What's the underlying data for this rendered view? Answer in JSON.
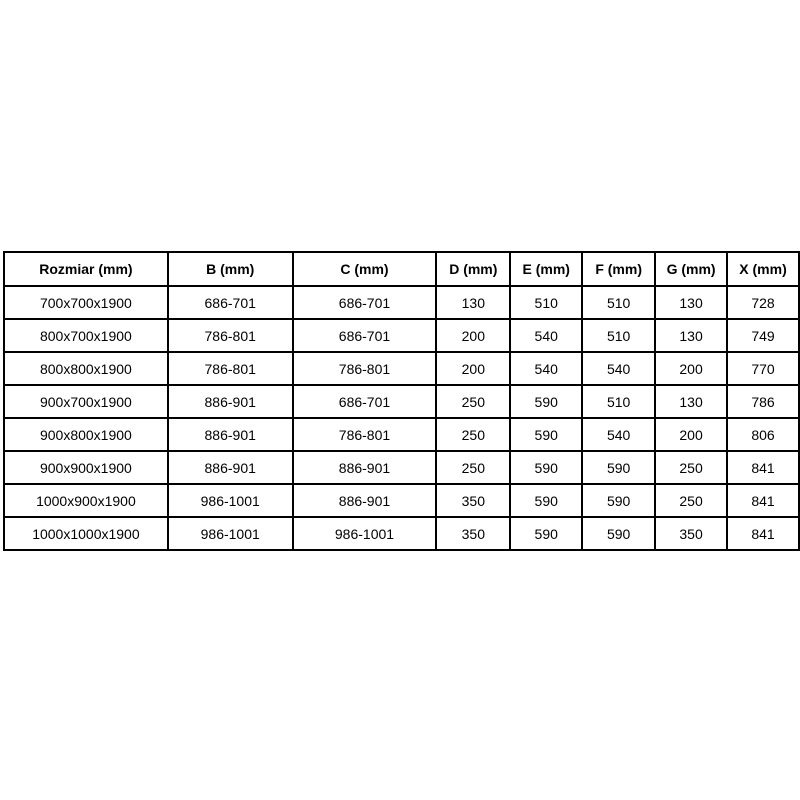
{
  "table": {
    "columns": [
      "Rozmiar (mm)",
      "B (mm)",
      "C (mm)",
      "D (mm)",
      "E (mm)",
      "F (mm)",
      "G (mm)",
      "X (mm)"
    ],
    "rows": [
      [
        "700x700x1900",
        "686-701",
        "686-701",
        "130",
        "510",
        "510",
        "130",
        "728"
      ],
      [
        "800x700x1900",
        "786-801",
        "686-701",
        "200",
        "540",
        "510",
        "130",
        "749"
      ],
      [
        "800x800x1900",
        "786-801",
        "786-801",
        "200",
        "540",
        "540",
        "200",
        "770"
      ],
      [
        "900x700x1900",
        "886-901",
        "686-701",
        "250",
        "590",
        "510",
        "130",
        "786"
      ],
      [
        "900x800x1900",
        "886-901",
        "786-801",
        "250",
        "590",
        "540",
        "200",
        "806"
      ],
      [
        "900x900x1900",
        "886-901",
        "886-901",
        "250",
        "590",
        "590",
        "250",
        "841"
      ],
      [
        "1000x900x1900",
        "986-1001",
        "886-901",
        "350",
        "590",
        "590",
        "250",
        "841"
      ],
      [
        "1000x1000x1900",
        "986-1001",
        "986-1001",
        "350",
        "590",
        "590",
        "350",
        "841"
      ]
    ],
    "colors": {
      "border": "#000000",
      "text": "#000000",
      "background": "#ffffff"
    }
  }
}
